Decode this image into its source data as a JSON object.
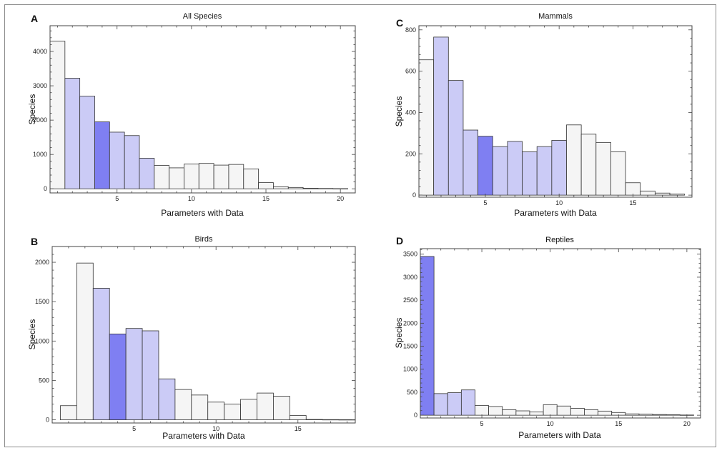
{
  "chart_data": [
    {
      "id": "A",
      "type": "bar",
      "letter": "A",
      "title": "All Species",
      "xlabel": "Parameters with Data",
      "ylabel": "Species",
      "xlim": [
        0.5,
        21
      ],
      "ylim": [
        -120,
        4750
      ],
      "xticks": [
        5,
        10,
        15,
        20
      ],
      "yticks": [
        0,
        1000,
        2000,
        3000,
        4000
      ],
      "x": [
        1,
        2,
        3,
        4,
        5,
        6,
        7,
        8,
        9,
        10,
        11,
        12,
        13,
        14,
        15,
        16,
        17,
        18,
        19,
        20
      ],
      "values": [
        4300,
        3220,
        2700,
        1950,
        1650,
        1550,
        890,
        680,
        610,
        720,
        740,
        690,
        710,
        580,
        180,
        60,
        40,
        15,
        10,
        5
      ],
      "bar_color": [
        "#f5f5f5",
        "#cbcbf6",
        "#cbcbf6",
        "#7f7ff2",
        "#cbcbf6",
        "#cbcbf6",
        "#cbcbf6",
        "#f5f5f5",
        "#f5f5f5",
        "#f5f5f5",
        "#f5f5f5",
        "#f5f5f5",
        "#f5f5f5",
        "#f5f5f5",
        "#f5f5f5",
        "#f5f5f5",
        "#f5f5f5",
        "#f5f5f5",
        "#f5f5f5",
        "#f5f5f5"
      ]
    },
    {
      "id": "C",
      "type": "bar",
      "letter": "C",
      "title": "Mammals",
      "xlabel": "Parameters with Data",
      "ylabel": "Species",
      "xlim": [
        0.5,
        19
      ],
      "ylim": [
        -10,
        820
      ],
      "xticks": [
        5,
        10,
        15
      ],
      "yticks": [
        0,
        200,
        400,
        600,
        800
      ],
      "x": [
        1,
        2,
        3,
        4,
        5,
        6,
        7,
        8,
        9,
        10,
        11,
        12,
        13,
        14,
        15,
        16,
        17,
        18
      ],
      "values": [
        655,
        765,
        555,
        315,
        285,
        235,
        260,
        210,
        235,
        265,
        340,
        295,
        255,
        210,
        60,
        20,
        10,
        5
      ],
      "bar_color": [
        "#f5f5f5",
        "#cbcbf6",
        "#cbcbf6",
        "#cbcbf6",
        "#7f7ff2",
        "#cbcbf6",
        "#cbcbf6",
        "#cbcbf6",
        "#cbcbf6",
        "#cbcbf6",
        "#f5f5f5",
        "#f5f5f5",
        "#f5f5f5",
        "#f5f5f5",
        "#f5f5f5",
        "#f5f5f5",
        "#f5f5f5",
        "#f5f5f5"
      ]
    },
    {
      "id": "B",
      "type": "bar",
      "letter": "B",
      "title": "Birds",
      "xlabel": "Parameters with Data",
      "ylabel": "Species",
      "xlim": [
        0,
        18.5
      ],
      "ylim": [
        -40,
        2200
      ],
      "xticks": [
        5,
        10,
        15
      ],
      "yticks": [
        0,
        500,
        1000,
        1500,
        2000
      ],
      "x": [
        1,
        2,
        3,
        4,
        5,
        6,
        7,
        8,
        9,
        10,
        11,
        12,
        13,
        14,
        15,
        16,
        17,
        18
      ],
      "values": [
        180,
        1990,
        1670,
        1090,
        1160,
        1130,
        520,
        385,
        315,
        225,
        200,
        260,
        340,
        300,
        55,
        5,
        3,
        2
      ],
      "bar_color": [
        "#f5f5f5",
        "#f5f5f5",
        "#cbcbf6",
        "#7f7ff2",
        "#cbcbf6",
        "#cbcbf6",
        "#cbcbf6",
        "#f5f5f5",
        "#f5f5f5",
        "#f5f5f5",
        "#f5f5f5",
        "#f5f5f5",
        "#f5f5f5",
        "#f5f5f5",
        "#f5f5f5",
        "#f5f5f5",
        "#f5f5f5",
        "#f5f5f5"
      ]
    },
    {
      "id": "D",
      "type": "bar",
      "letter": "D",
      "title": "Reptiles",
      "xlabel": "Parameters with Data",
      "ylabel": "Species",
      "xlim": [
        0.5,
        21
      ],
      "ylim": [
        -60,
        3620
      ],
      "xticks": [
        5,
        10,
        15,
        20
      ],
      "yticks": [
        0,
        500,
        1000,
        1500,
        2000,
        2500,
        3000,
        3500
      ],
      "x": [
        1,
        2,
        3,
        4,
        5,
        6,
        7,
        8,
        9,
        10,
        11,
        12,
        13,
        14,
        15,
        16,
        17,
        18,
        19,
        20
      ],
      "values": [
        3450,
        470,
        490,
        550,
        210,
        190,
        120,
        95,
        70,
        230,
        200,
        150,
        120,
        90,
        60,
        30,
        25,
        15,
        10,
        5
      ],
      "bar_color": [
        "#7f7ff2",
        "#cbcbf6",
        "#cbcbf6",
        "#cbcbf6",
        "#f5f5f5",
        "#f5f5f5",
        "#f5f5f5",
        "#f5f5f5",
        "#f5f5f5",
        "#f5f5f5",
        "#f5f5f5",
        "#f5f5f5",
        "#f5f5f5",
        "#f5f5f5",
        "#f5f5f5",
        "#f5f5f5",
        "#f5f5f5",
        "#f5f5f5",
        "#f5f5f5",
        "#f5f5f5"
      ]
    }
  ]
}
